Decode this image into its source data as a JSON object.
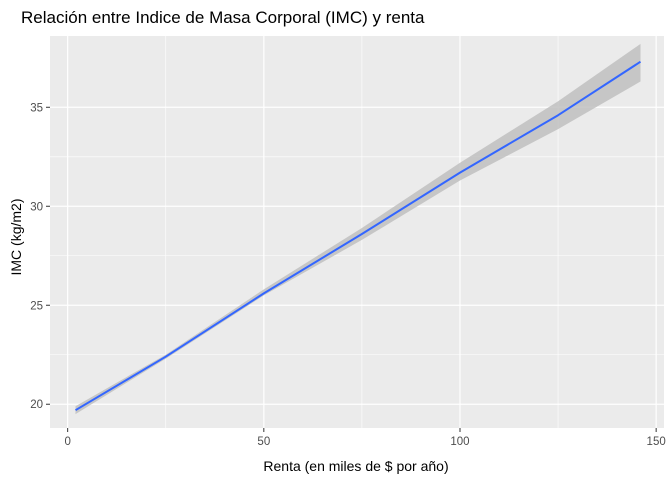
{
  "chart_data": {
    "type": "line",
    "title": "Relación entre Indice de Masa Corporal (IMC) y renta",
    "xlabel": "Renta (en miles de $ por año)",
    "ylabel": "IMC (kg/m2)",
    "xlim": [
      -4.5,
      152
    ],
    "ylim": [
      18.8,
      38.6
    ],
    "x_ticks": [
      0,
      50,
      100,
      150
    ],
    "x_tick_labels": [
      "0",
      "50",
      "100",
      "150"
    ],
    "y_ticks": [
      20,
      25,
      30,
      35
    ],
    "y_tick_labels": [
      "20",
      "25",
      "30",
      "35"
    ],
    "grid": true,
    "legend": "none",
    "colors": {
      "panel_background": "#ebebeb",
      "grid": "#ffffff",
      "line": "#3366ff",
      "confidence_band": "#c0c0c0"
    },
    "series": [
      {
        "x": [
          2,
          25,
          50,
          75,
          100,
          125,
          146
        ],
        "y": [
          19.7,
          22.4,
          25.6,
          28.6,
          31.7,
          34.6,
          37.3
        ],
        "lower": [
          19.5,
          22.3,
          25.5,
          28.3,
          31.3,
          33.9,
          36.3
        ],
        "upper": [
          19.9,
          22.5,
          25.8,
          28.9,
          32.2,
          35.3,
          38.2
        ]
      }
    ]
  }
}
